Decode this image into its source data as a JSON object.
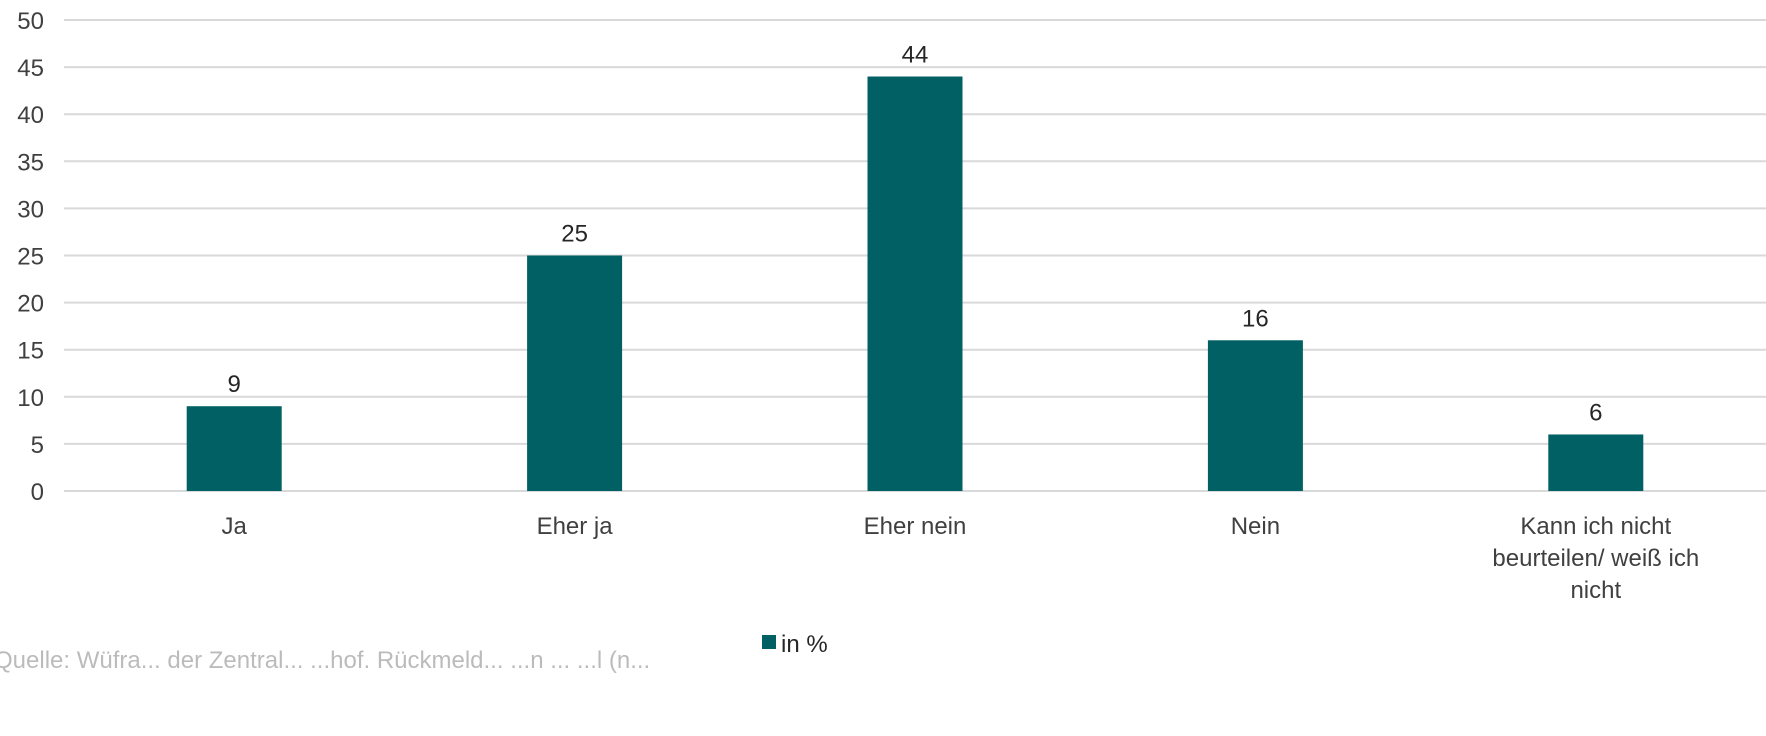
{
  "chart_data": {
    "type": "bar",
    "categories": [
      "Ja",
      "Eher ja",
      "Eher nein",
      "Nein",
      "Kann ich nicht beurteilen/ weiß ich nicht"
    ],
    "category_lines": [
      [
        "Ja"
      ],
      [
        "Eher ja"
      ],
      [
        "Eher nein"
      ],
      [
        "Nein"
      ],
      [
        "Kann ich nicht",
        "beurteilen/ weiß ich",
        "nicht"
      ]
    ],
    "series": [
      {
        "name": "in %",
        "values": [
          9,
          25,
          44,
          16,
          6
        ],
        "color": "#006064"
      }
    ],
    "ylim": [
      0,
      50
    ],
    "yticks": [
      0,
      5,
      10,
      15,
      20,
      25,
      30,
      35,
      40,
      45,
      50
    ],
    "grid": true,
    "data_labels": true,
    "legend_position": "bottom",
    "source_note": "Quelle: Wüfra... der Zentral... ...hof. Rückmeld... ...n ... ...l (n..."
  },
  "colors": {
    "bar": "#006064",
    "grid": "#d9d9d9",
    "text": "#404040"
  }
}
